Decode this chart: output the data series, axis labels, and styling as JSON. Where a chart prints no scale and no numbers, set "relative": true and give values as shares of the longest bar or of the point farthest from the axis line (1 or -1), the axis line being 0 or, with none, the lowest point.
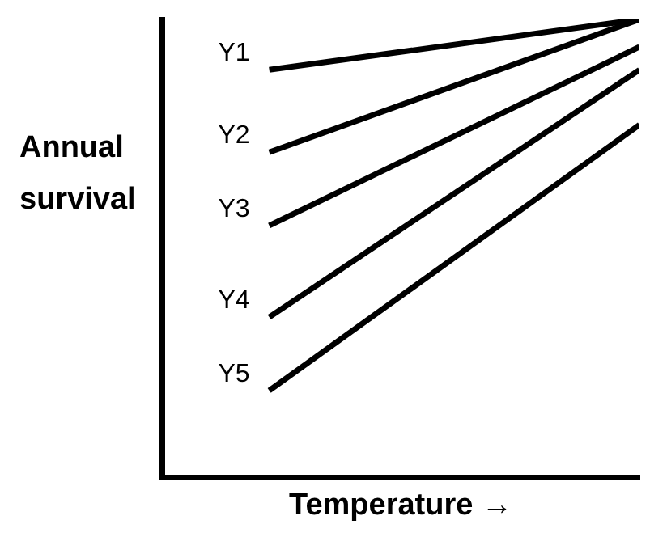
{
  "chart_data": {
    "type": "line",
    "relative": true,
    "xlabel": "Temperature →",
    "ylabel": "Annual survival",
    "categories": [
      null,
      null
    ],
    "tick_labels": false,
    "series": [
      {
        "name": "Y1",
        "color": "#000000",
        "values": [
          0.89,
          1
        ]
      },
      {
        "name": "Y2",
        "color": "#000000",
        "values": [
          0.71,
          1
        ]
      },
      {
        "name": "Y3",
        "color": "#000000",
        "values": [
          0.55,
          0.94
        ]
      },
      {
        "name": "Y4",
        "color": "#000000",
        "values": [
          0.35,
          0.89
        ]
      },
      {
        "name": "Y5",
        "color": "#000000",
        "values": [
          0.19,
          0.77
        ]
      }
    ]
  }
}
